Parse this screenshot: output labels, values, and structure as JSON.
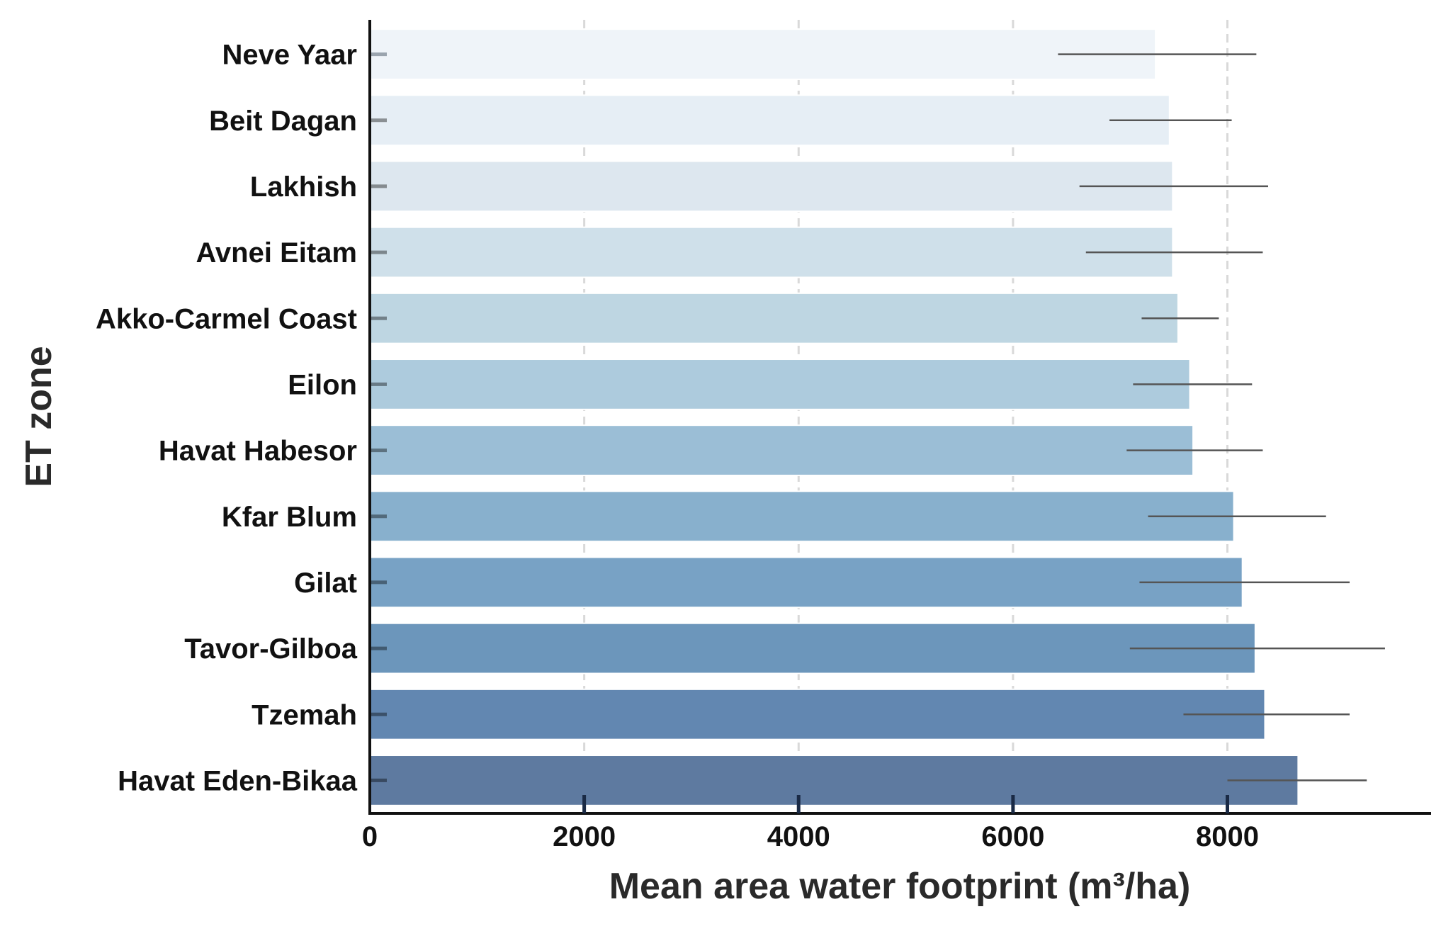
{
  "chart_data": {
    "type": "bar",
    "orientation": "horizontal",
    "xlabel": "Mean area water footprint (m³/ha)",
    "ylabel": "ET zone",
    "xlim": [
      0,
      9900
    ],
    "xticks": [
      0,
      2000,
      4000,
      6000,
      8000
    ],
    "grid": "vertical dashed",
    "categories": [
      "Neve Yaar",
      "Beit Dagan",
      "Lakhish",
      "Avnei Eitam",
      "Akko-Carmel Coast",
      "Eilon",
      "Havat Habesor",
      "Kfar Blum",
      "Gilat",
      "Tavor-Gilboa",
      "Tzemah",
      "Havat Eden-Bikaa"
    ],
    "values": [
      7330,
      7460,
      7490,
      7490,
      7540,
      7650,
      7680,
      8060,
      8140,
      8260,
      8350,
      8660
    ],
    "error_low": [
      6420,
      6900,
      6620,
      6680,
      7200,
      7120,
      7060,
      7260,
      7180,
      7090,
      7590,
      8000
    ],
    "error_high": [
      8270,
      8040,
      8380,
      8330,
      7920,
      8230,
      8330,
      8920,
      9140,
      9470,
      9140,
      9300
    ],
    "colors": [
      "#eff4f9",
      "#e6eef5",
      "#dde7ef",
      "#cfe0ea",
      "#bed6e2",
      "#adcbdd",
      "#9bbed6",
      "#88b0cd",
      "#78a2c5",
      "#6c96bb",
      "#6287b1",
      "#5e7aa0"
    ]
  }
}
